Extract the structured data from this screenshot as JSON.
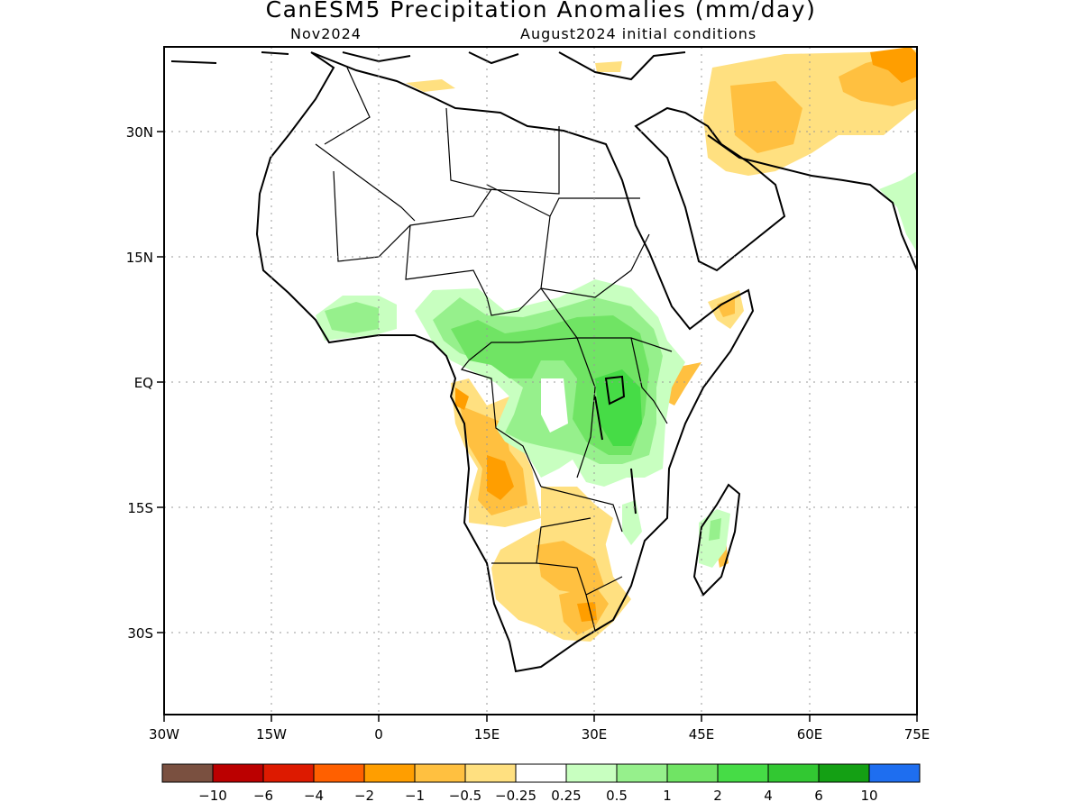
{
  "header": {
    "title": "CanESM5 Precipitation Anomalies (mm/day)",
    "subtitle_left": "Nov2024",
    "subtitle_right": "August2024 initial conditions"
  },
  "axes": {
    "x_ticks": [
      "30W",
      "15W",
      "0",
      "15E",
      "30E",
      "45E",
      "60E",
      "75E"
    ],
    "y_ticks": [
      "30N",
      "15N",
      "EQ",
      "15S",
      "30S"
    ],
    "lon_range": [
      -30,
      75
    ],
    "lat_range": [
      -40,
      40
    ],
    "grid": "dotted"
  },
  "legend": {
    "placement": "bottom",
    "labels": [
      "−10",
      "−6",
      "−4",
      "−2",
      "−1",
      "−0.5",
      "−0.25",
      "0.25",
      "0.5",
      "1",
      "2",
      "4",
      "6",
      "10"
    ],
    "colors": [
      "#7a5040",
      "#bb0000",
      "#dd1a00",
      "#ff6000",
      "#ff9e00",
      "#ffc040",
      "#ffe080",
      "#ffffff",
      "#c8ffc0",
      "#96f08c",
      "#70e464",
      "#46dc46",
      "#32c832",
      "#14a014",
      "#1e6ef0"
    ]
  },
  "regions": [
    {
      "name": "Middle East / Iran / Pakistan",
      "anomaly": "-1 to -0.25",
      "color": "#ffc040"
    },
    {
      "name": "Angola",
      "anomaly": "-2 to -0.25",
      "color": "#ffc040"
    },
    {
      "name": "Southern Africa",
      "anomaly": "-1 to -0.25",
      "color": "#ffc040"
    },
    {
      "name": "Congo Basin / Central Africa",
      "anomaly": "0.25 to 2",
      "color": "#70e464"
    },
    {
      "name": "East Africa / Great Lakes",
      "anomaly": "0.25 to 2",
      "color": "#70e464"
    },
    {
      "name": "West African coast",
      "anomaly": "0.25 to 1",
      "color": "#96f08c"
    },
    {
      "name": "Madagascar",
      "anomaly": "0.25 to 0.5",
      "color": "#c8ffc0"
    },
    {
      "name": "Somalia / Horn of Africa",
      "anomaly": "-1 to -0.25",
      "color": "#ffc040"
    }
  ]
}
